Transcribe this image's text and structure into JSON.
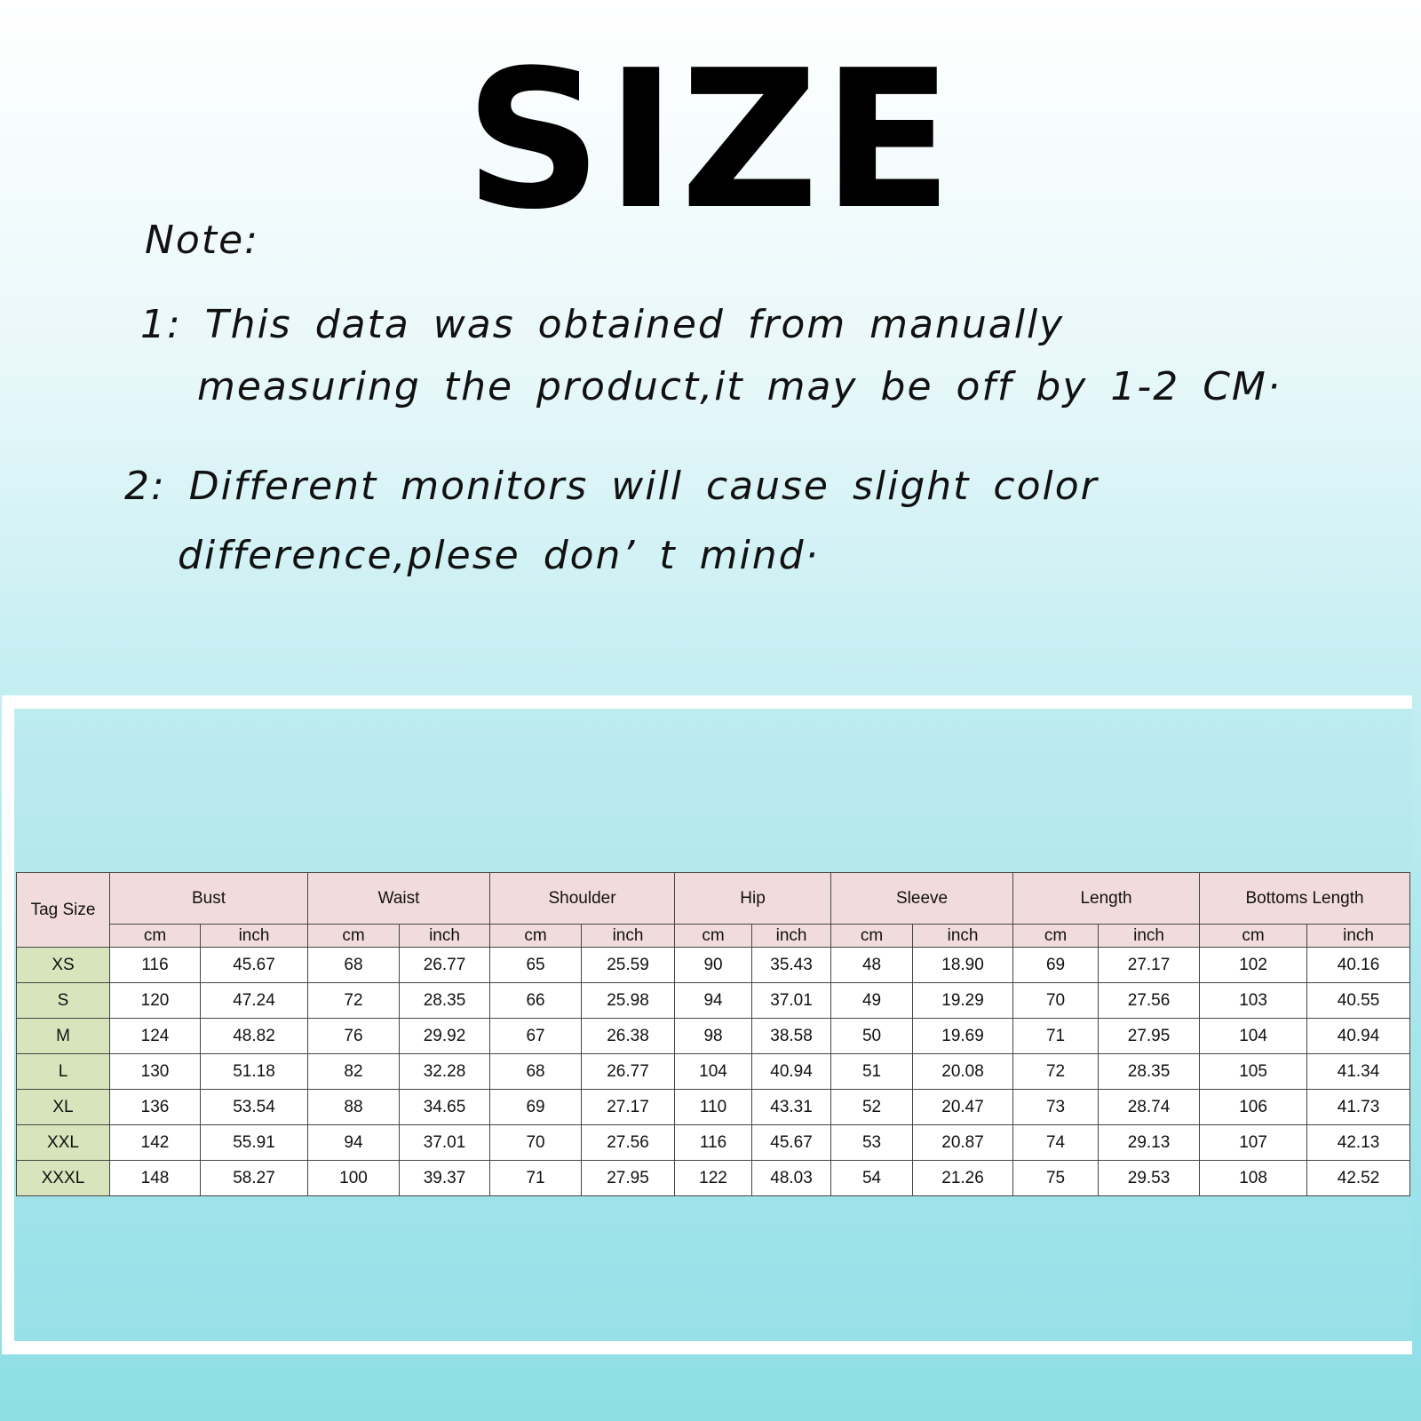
{
  "title": "SIZE",
  "notes": {
    "heading": "Note:",
    "line1a": "1: This data was obtained from manually",
    "line1b": "measuring the product,it may be off by 1-2 CM·",
    "line2a": "2: Different monitors will cause slight color",
    "line2b": "difference,plese don’ t mind·"
  },
  "colors": {
    "tag_header": "#b8cce4",
    "measure_header": "#f2dcdb",
    "size_column": "#d7e4bc",
    "background": "#8edee6"
  },
  "table": {
    "tag_header": "Tag Size",
    "groups": [
      "Bust",
      "Waist",
      "Shoulder",
      "Hip",
      "Sleeve",
      "Length",
      "Bottoms Length"
    ],
    "units": [
      "cm",
      "inch"
    ],
    "rows": [
      [
        "XS",
        "116",
        "45.67",
        "68",
        "26.77",
        "65",
        "25.59",
        "90",
        "35.43",
        "48",
        "18.90",
        "69",
        "27.17",
        "102",
        "40.16"
      ],
      [
        "S",
        "120",
        "47.24",
        "72",
        "28.35",
        "66",
        "25.98",
        "94",
        "37.01",
        "49",
        "19.29",
        "70",
        "27.56",
        "103",
        "40.55"
      ],
      [
        "M",
        "124",
        "48.82",
        "76",
        "29.92",
        "67",
        "26.38",
        "98",
        "38.58",
        "50",
        "19.69",
        "71",
        "27.95",
        "104",
        "40.94"
      ],
      [
        "L",
        "130",
        "51.18",
        "82",
        "32.28",
        "68",
        "26.77",
        "104",
        "40.94",
        "51",
        "20.08",
        "72",
        "28.35",
        "105",
        "41.34"
      ],
      [
        "XL",
        "136",
        "53.54",
        "88",
        "34.65",
        "69",
        "27.17",
        "110",
        "43.31",
        "52",
        "20.47",
        "73",
        "28.74",
        "106",
        "41.73"
      ],
      [
        "XXL",
        "142",
        "55.91",
        "94",
        "37.01",
        "70",
        "27.56",
        "116",
        "45.67",
        "53",
        "20.87",
        "74",
        "29.13",
        "107",
        "42.13"
      ],
      [
        "XXXL",
        "148",
        "58.27",
        "100",
        "39.37",
        "71",
        "27.95",
        "122",
        "48.03",
        "54",
        "21.26",
        "75",
        "29.53",
        "108",
        "42.52"
      ]
    ]
  }
}
